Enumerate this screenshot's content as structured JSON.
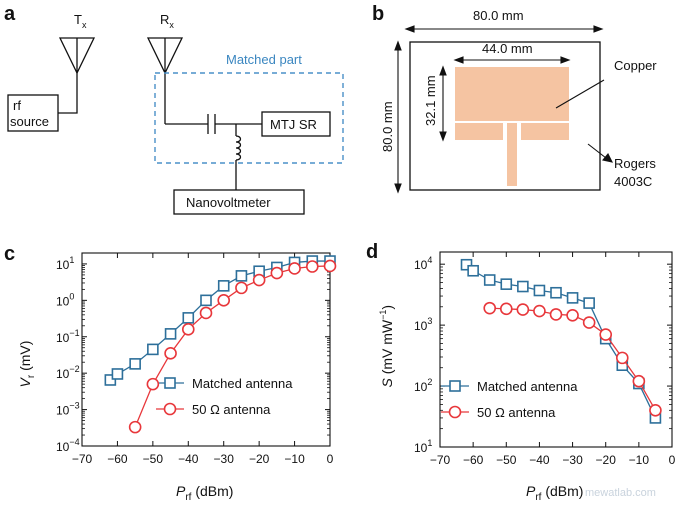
{
  "panels": {
    "a": {
      "label": "a",
      "tx": "T",
      "tx_sub": "x",
      "rx": "R",
      "rx_sub": "x",
      "rf_source_line1": "rf",
      "rf_source_line2": "source",
      "matched_part": "Matched part",
      "mtj": "MTJ SR",
      "nanovoltmeter": "Nanovoltmeter"
    },
    "b": {
      "label": "b",
      "outer_width": "80.0 mm",
      "outer_height": "80.0 mm",
      "patch_width": "44.0 mm",
      "patch_height": "32.1 mm",
      "copper": "Copper",
      "rogers_line1": "Rogers",
      "rogers_line2": "4003C"
    },
    "c": {
      "label": "c"
    },
    "d": {
      "label": "d"
    }
  },
  "colors": {
    "matched": "#2d6f9a",
    "fifty_ohm": "#e8373b",
    "copper": "#f5c4a2",
    "dashed_box": "#4a90c8"
  },
  "watermark": "mewatlab.com",
  "chart_data": [
    {
      "id": "c",
      "type": "line",
      "title": "",
      "xlabel_main": "P",
      "xlabel_sub": "rf",
      "xlabel_unit": " (dBm)",
      "ylabel_main": "V",
      "ylabel_sub": "r",
      "ylabel_unit": " (mV)",
      "xlim": [
        -70,
        0
      ],
      "ylim_log10": [
        -4,
        1.3
      ],
      "y_scale": "log",
      "x_ticks": [
        -70,
        -60,
        -50,
        -40,
        -30,
        -20,
        -10,
        0
      ],
      "x_tick_labels": [
        "−70",
        "−60",
        "−50",
        "−40",
        "−30",
        "−20",
        "−10",
        "0"
      ],
      "y_ticks_log10": [
        -4,
        -3,
        -2,
        -1,
        0,
        1
      ],
      "y_tick_base": "10",
      "y_tick_exps": [
        "−4",
        "−3",
        "−2",
        "−1",
        "0",
        "1"
      ],
      "legend_position": "bottom-right",
      "series": [
        {
          "name": "Matched antenna",
          "marker": "square",
          "x": [
            -62,
            -60,
            -55,
            -50,
            -45,
            -40,
            -35,
            -30,
            -25,
            -20,
            -15,
            -10,
            -5,
            0
          ],
          "y": [
            0.0065,
            0.0095,
            0.018,
            0.045,
            0.12,
            0.33,
            1.0,
            2.5,
            4.7,
            6.3,
            8.0,
            11.0,
            12.0,
            12.0
          ]
        },
        {
          "name": "50 Ω antenna",
          "marker": "circle",
          "x": [
            -55,
            -50,
            -45,
            -40,
            -35,
            -30,
            -25,
            -20,
            -15,
            -10,
            -5,
            0
          ],
          "y": [
            0.00033,
            0.005,
            0.035,
            0.16,
            0.45,
            1.0,
            2.2,
            3.6,
            5.6,
            7.5,
            8.5,
            8.8
          ]
        }
      ]
    },
    {
      "id": "d",
      "type": "line",
      "title": "",
      "xlabel_main": "P",
      "xlabel_sub": "rf",
      "xlabel_unit": " (dBm)",
      "ylabel_main": "S",
      "ylabel_unit": " (mV mW",
      "ylabel_sup": "−1",
      "ylabel_close": ")",
      "xlim": [
        -70,
        0
      ],
      "ylim_log10": [
        1,
        4.2
      ],
      "y_scale": "log",
      "x_ticks": [
        -70,
        -60,
        -50,
        -40,
        -30,
        -20,
        -10,
        0
      ],
      "x_tick_labels": [
        "−70",
        "−60",
        "−50",
        "−40",
        "−30",
        "−20",
        "−10",
        "0"
      ],
      "y_ticks_log10": [
        1,
        2,
        3,
        4
      ],
      "y_tick_base": "10",
      "y_tick_exps": [
        "1",
        "2",
        "3",
        "4"
      ],
      "legend_position": "bottom-left",
      "series": [
        {
          "name": "Matched antenna",
          "marker": "square",
          "x": [
            -62,
            -60,
            -55,
            -50,
            -45,
            -40,
            -35,
            -30,
            -25,
            -20,
            -15,
            -10,
            -5
          ],
          "y": [
            9800,
            7800,
            5500,
            4700,
            4300,
            3700,
            3400,
            2800,
            2300,
            600,
            220,
            110,
            30
          ]
        },
        {
          "name": "50 Ω antenna",
          "marker": "circle",
          "x": [
            -55,
            -50,
            -45,
            -40,
            -35,
            -30,
            -25,
            -20,
            -15,
            -10,
            -5
          ],
          "y": [
            1900,
            1850,
            1800,
            1700,
            1500,
            1450,
            1100,
            700,
            290,
            120,
            40
          ]
        }
      ]
    }
  ]
}
